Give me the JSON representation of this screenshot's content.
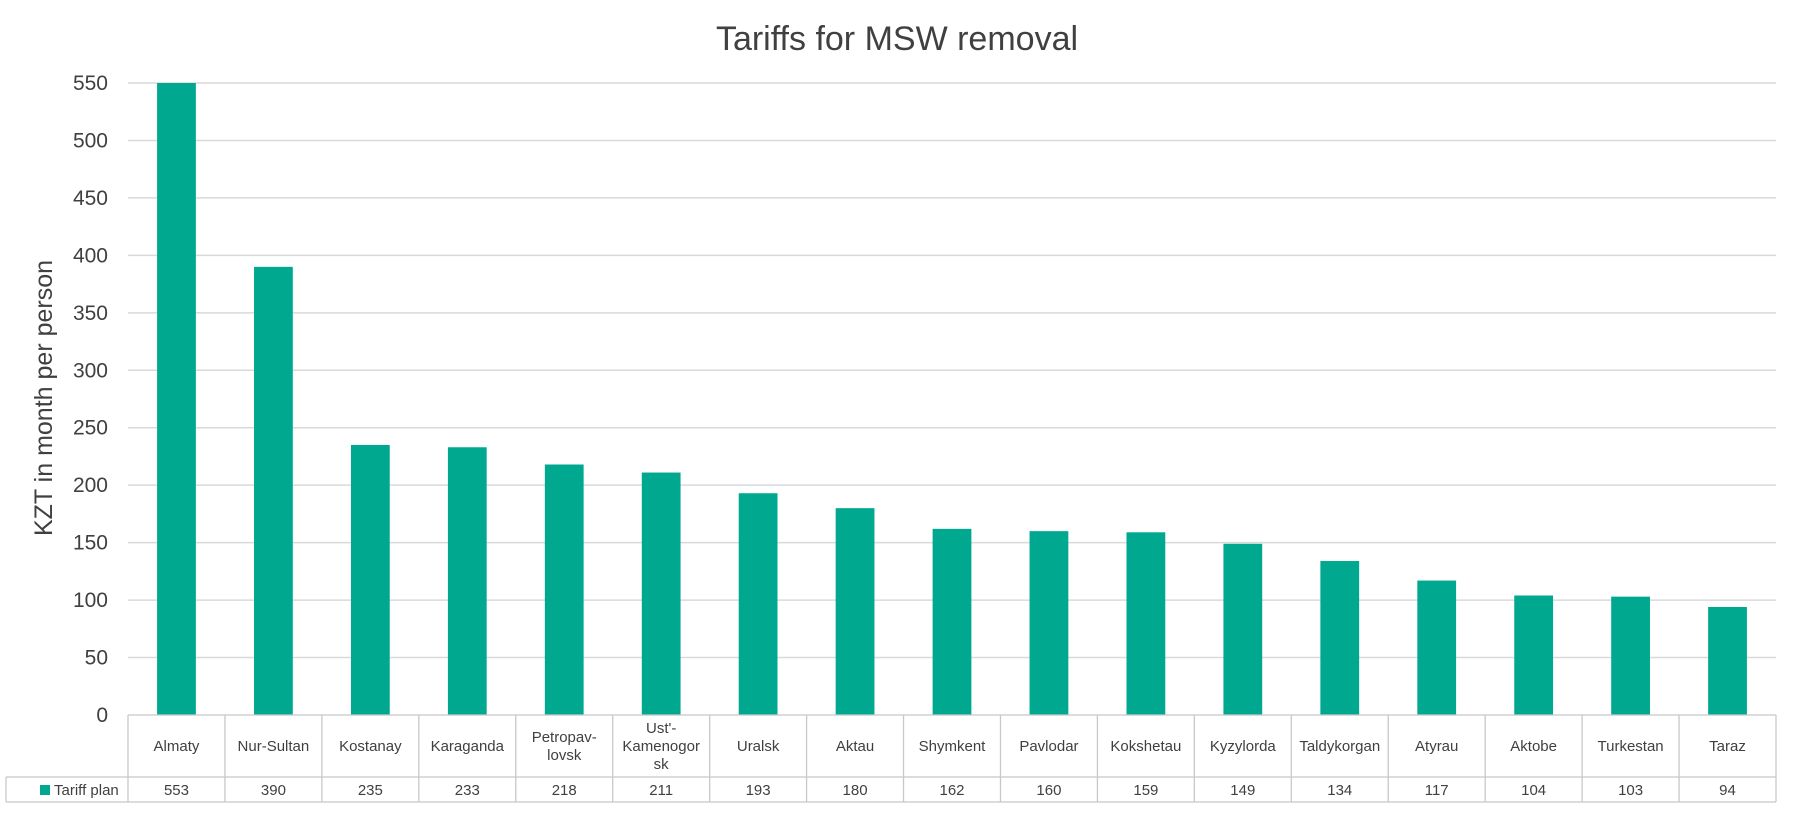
{
  "chart_data": {
    "type": "bar",
    "title": "Tariffs for MSW removal",
    "ylabel": "KZT in month per person",
    "xlabel": "",
    "ylim": [
      0,
      550
    ],
    "yticks": [
      0,
      50,
      100,
      150,
      200,
      250,
      300,
      350,
      400,
      450,
      500,
      550
    ],
    "grid": true,
    "legend": "data-table",
    "categories": [
      [
        "Almaty"
      ],
      [
        "Nur-Sultan"
      ],
      [
        "Kostanay"
      ],
      [
        "Karaganda"
      ],
      [
        "Petropav-",
        "lovsk"
      ],
      [
        "Ust'-",
        "Kamenogor",
        "sk"
      ],
      [
        "Uralsk"
      ],
      [
        "Aktau"
      ],
      [
        "Shymkent"
      ],
      [
        "Pavlodar"
      ],
      [
        "Kokshetau"
      ],
      [
        "Kyzylorda"
      ],
      [
        "Taldykorgan"
      ],
      [
        "Atyrau"
      ],
      [
        "Aktobe"
      ],
      [
        "Turkestan"
      ],
      [
        "Taraz"
      ]
    ],
    "series": [
      {
        "name": "Tariff plan",
        "color": "#00a88f",
        "values": [
          553,
          390,
          235,
          233,
          218,
          211,
          193,
          180,
          162,
          160,
          159,
          149,
          134,
          117,
          104,
          103,
          94
        ]
      }
    ]
  }
}
